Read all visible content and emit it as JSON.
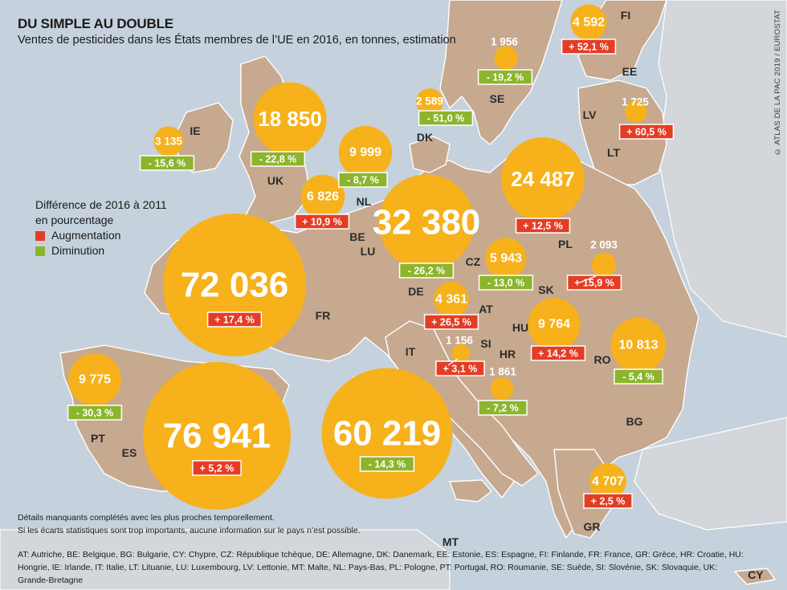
{
  "title": "DU SIMPLE AU DOUBLE",
  "subtitle": "Ventes de pesticides dans les États membres de l’UE en 2016, en tonnes, estimation",
  "legend": {
    "title_line1": "Différence de 2016 à 2011",
    "title_line2": "en pourcentage",
    "items": [
      {
        "label": "Augmentation",
        "color": "#e43d25"
      },
      {
        "label": "Diminution",
        "color": "#8cb52d"
      }
    ]
  },
  "colors": {
    "bubble": "#f6b11b",
    "increase": "#e43d25",
    "decrease": "#8cb52d",
    "land": "#c7a98f",
    "sea": "#c5d1dc"
  },
  "notes": [
    "Détails manquants complétés avec les plus proches temporellement.",
    "Si les écarts statistiques sont trop importants, aucune information sur le pays n’est possible."
  ],
  "abbreviations": "AT: Autriche, BE: Belgique, BG: Bulgarie, CY: Chypre, CZ: République tchèque, DE: Allemagne, DK: Danemark, EE: Estonie, ES: Espagne, FI: Finlande, FR: France, GR: Grèce, HR: Croatie, HU: Hongrie, IE: Irlande, IT: Italie, LT: Lituanie, LU: Luxembourg, LV: Lettonie, MT: Malte, NL: Pays-Bas, PL: Pologne, PT: Portugal, RO: Roumanie, SE: Suède, SI: Slovénie, SK: Slovaquie, UK: Grande-Bretagne",
  "source": "© ATLAS DE LA PAC 2019 / EUROSTAT",
  "countries": [
    {
      "code": "ES",
      "value": 76941,
      "value_label": "76 941",
      "change": 5.2,
      "change_label": "+ 5,2 %"
    },
    {
      "code": "FR",
      "value": 72036,
      "value_label": "72 036",
      "change": 17.4,
      "change_label": "+ 17,4 %"
    },
    {
      "code": "IT",
      "value": 60219,
      "value_label": "60 219",
      "change": -14.3,
      "change_label": "- 14,3 %"
    },
    {
      "code": "DE",
      "value": 32380,
      "value_label": "32 380",
      "change": -26.2,
      "change_label": "- 26,2 %"
    },
    {
      "code": "PL",
      "value": 24487,
      "value_label": "24 487",
      "change": 12.5,
      "change_label": "+ 12,5 %"
    },
    {
      "code": "UK",
      "value": 18850,
      "value_label": "18 850",
      "change": -22.8,
      "change_label": "- 22,8 %"
    },
    {
      "code": "RO",
      "value": 10813,
      "value_label": "10 813",
      "change": -5.4,
      "change_label": "- 5,4 %"
    },
    {
      "code": "NL",
      "value": 9999,
      "value_label": "9 999",
      "change": -8.7,
      "change_label": "- 8,7 %"
    },
    {
      "code": "PT",
      "value": 9775,
      "value_label": "9 775",
      "change": -30.3,
      "change_label": "- 30,3 %"
    },
    {
      "code": "HU",
      "value": 9764,
      "value_label": "9 764",
      "change": 14.2,
      "change_label": "+ 14,2 %"
    },
    {
      "code": "BE",
      "value": 6826,
      "value_label": "6 826",
      "change": 10.9,
      "change_label": "+ 10,9 %"
    },
    {
      "code": "CZ",
      "value": 5943,
      "value_label": "5 943",
      "change": -13.0,
      "change_label": "- 13,0 %"
    },
    {
      "code": "GR",
      "value": 4707,
      "value_label": "4 707",
      "change": 2.5,
      "change_label": "+ 2,5 %"
    },
    {
      "code": "FI",
      "value": 4592,
      "value_label": "4 592",
      "change": 52.1,
      "change_label": "+ 52,1 %"
    },
    {
      "code": "AT",
      "value": 4361,
      "value_label": "4 361",
      "change": 26.5,
      "change_label": "+ 26,5 %"
    },
    {
      "code": "IE",
      "value": 3135,
      "value_label": "3 135",
      "change": -15.6,
      "change_label": "- 15,6 %"
    },
    {
      "code": "DK",
      "value": 2589,
      "value_label": "2 589",
      "change": -51.0,
      "change_label": "- 51,0 %"
    },
    {
      "code": "SK",
      "value": 2093,
      "value_label": "2 093",
      "change": 15.9,
      "change_label": "+ 15,9 %"
    },
    {
      "code": "SE",
      "value": 1956,
      "value_label": "1 956",
      "change": -19.2,
      "change_label": "- 19,2 %"
    },
    {
      "code": "HR",
      "value": 1861,
      "value_label": "1 861",
      "change": -7.2,
      "change_label": "- 7,2 %"
    },
    {
      "code": "LT",
      "value": 1725,
      "value_label": "1 725",
      "change": 60.5,
      "change_label": "+ 60,5 %"
    },
    {
      "code": "SI",
      "value": 1156,
      "value_label": "1 156",
      "change": 3.1,
      "change_label": "+ 3,1 %"
    }
  ],
  "country_labels": [
    "IE",
    "UK",
    "NL",
    "BE",
    "LU",
    "FR",
    "PT",
    "ES",
    "IT",
    "DE",
    "CZ",
    "AT",
    "SI",
    "HR",
    "HU",
    "SK",
    "PL",
    "RO",
    "BG",
    "GR",
    "MT",
    "CY",
    "DK",
    "SE",
    "FI",
    "EE",
    "LV",
    "LT"
  ]
}
